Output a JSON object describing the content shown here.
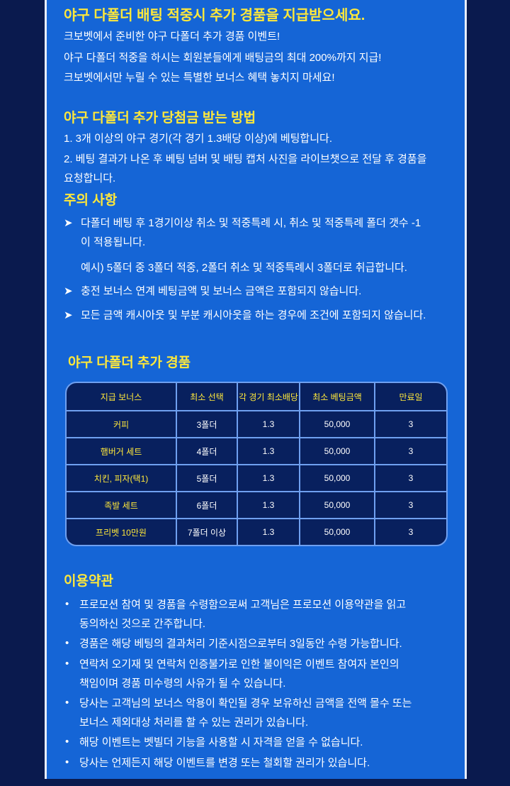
{
  "intro": {
    "title": "야구 다폴더 배팅 적중시 추가 경품을 지급받으세요.",
    "lines": [
      "크보벳에서 준비한 야구 다폴더 추가 경품 이벤트!",
      "야구 다폴더 적중을 하시는 회원분들에게 배팅금의 최대 200%까지 지급!",
      "크보벳에서만 누릴 수 있는 특별한 보너스 혜택 놓치지 마세요!"
    ]
  },
  "howto": {
    "title": "야구 다폴더 추가 당첨금 받는 방법",
    "lines": [
      "1. 3개 이상의 야구 경기(각 경기 1.3배당 이상)에 베팅합니다.",
      "2. 베팅 결과가 나온 후 베팅 넘버 및 배팅 캡처 사진을 라이브챗으로 전달 후 경품을",
      "요청합니다."
    ]
  },
  "caution": {
    "title": "주의 사항",
    "bullet": "➤",
    "items": [
      "다폴더 베팅 후 1경기이상 취소 및 적중특례 시, 취소 및 적중특례 폴더 갯수 -1",
      "이 적용됩니다.",
      "예시) 5폴더 중 3폴더 적중, 2폴더 취소 및 적중특례시 3폴더로 취급합니다.",
      "충전 보너스 연계 베팅금액 및 보너스 금액은 포함되지 않습니다.",
      "모든 금액 캐시아웃 및 부분 캐시아웃을 하는 경우에 조건에 포함되지 않습니다."
    ]
  },
  "prizes": {
    "title": "야구 다폴더 추가 경품",
    "headers": [
      "지급 보너스",
      "최소 선택",
      "각 경기 최소배당",
      "최소  베팅금액",
      "만료일"
    ],
    "rows": [
      [
        "커피",
        "3폴더",
        "1.3",
        "50,000",
        "3"
      ],
      [
        "햄버거 세트",
        "4폴더",
        "1.3",
        "50,000",
        "3"
      ],
      [
        "치킨, 피자(택1)",
        "5폴더",
        "1.3",
        "50,000",
        "3"
      ],
      [
        "족발 세트",
        "6폴더",
        "1.3",
        "50,000",
        "3"
      ],
      [
        "프리벳 10만원",
        "7폴더 이상",
        "1.3",
        "50,000",
        "3"
      ]
    ]
  },
  "terms": {
    "title": "이용약관",
    "bullet": "•",
    "lines": [
      "프로모션 참여 및 경품을 수령함으로써 고객님은 프로모션 이용약관을 읽고",
      "동의하신 것으로 간주합니다.",
      "경품은 해당 베팅의 결과처리 기준시점으로부터 3일동안 수령 가능합니다.",
      "연락처 오기재 및 연락처 인증불가로 인한 불이익은 이벤트 참여자 본인의",
      "책임이며 경품 미수령의 사유가 될 수 있습니다.",
      "당사는 고객님의 보너스 악용이 확인될 경우 보유하신 금액을 전액 몰수 또는",
      "보너스 제외대상 처리를 할 수 있는 권리가 있습니다.",
      "해당 이벤트는 벳빌더 기능을 사용할 시 자격을 얻을 수 없습니다.",
      "당사는 언제든지 해당 이벤트를 변경 또는 철회할 권리가 있습니다."
    ]
  },
  "colors": {
    "background": "#0a1a4e",
    "panel": "#1565d6",
    "heading": "#ffe83a",
    "table_bg": "#08205e"
  }
}
